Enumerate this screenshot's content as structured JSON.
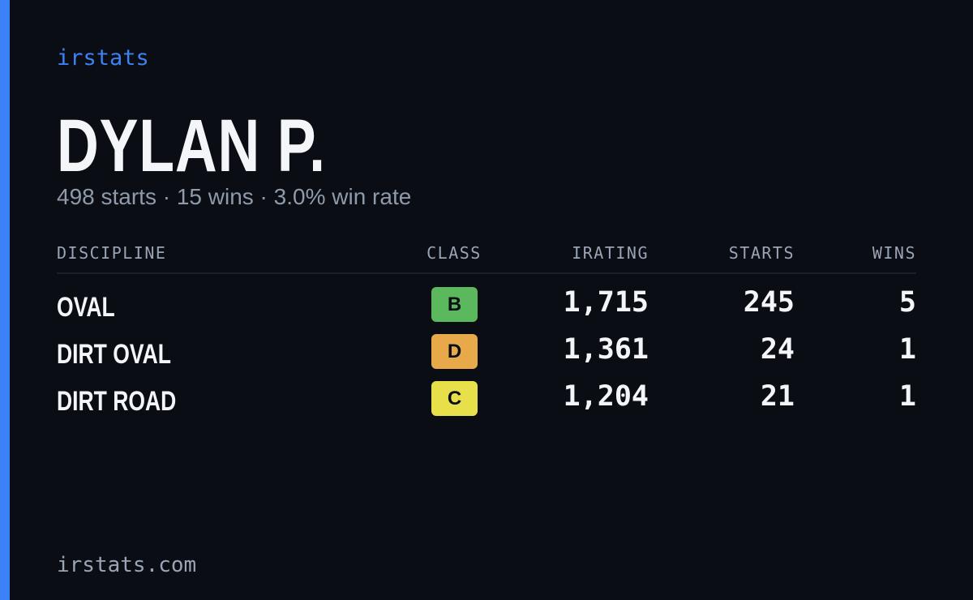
{
  "brand": "irstats",
  "name": "DYLAN P.",
  "summary": "498 starts · 15 wins · 3.0% win rate",
  "table": {
    "columns": [
      "DISCIPLINE",
      "CLASS",
      "IRATING",
      "STARTS",
      "WINS"
    ],
    "rows": [
      {
        "discipline": "OVAL",
        "class": "B",
        "class_color": "#5cb85c",
        "irating": "1,715",
        "starts": "245",
        "wins": "5"
      },
      {
        "discipline": "DIRT OVAL",
        "class": "D",
        "class_color": "#e8a94a",
        "irating": "1,361",
        "starts": "24",
        "wins": "1"
      },
      {
        "discipline": "DIRT ROAD",
        "class": "C",
        "class_color": "#e8e04a",
        "irating": "1,204",
        "starts": "21",
        "wins": "1"
      }
    ]
  },
  "footer": "irstats.com"
}
